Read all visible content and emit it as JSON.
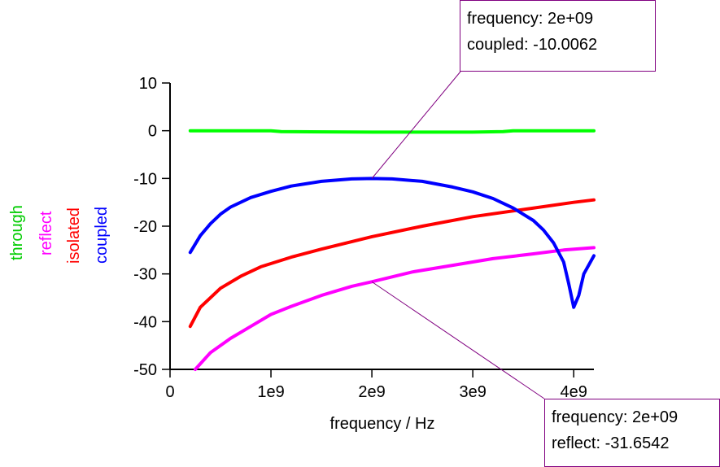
{
  "chart_data": {
    "type": "line",
    "xlabel": "frequency / Hz",
    "xlim": [
      0,
      4200000000
    ],
    "ylim": [
      -50,
      10
    ],
    "x_ticks": [
      0,
      1000000000,
      2000000000,
      3000000000,
      4000000000
    ],
    "x_tick_labels": [
      "0",
      "1e9",
      "2e9",
      "3e9",
      "4e9"
    ],
    "y_ticks": [
      10,
      0,
      -10,
      -20,
      -30,
      -40,
      -50
    ],
    "y_tick_labels": [
      "10",
      "0",
      "-10",
      "-20",
      "-30",
      "-40",
      "-50"
    ],
    "grid": false,
    "legend_position": "left, vertical",
    "series": [
      {
        "name": "through",
        "color": "#00ff00",
        "x": [
          200000000,
          500000000,
          1000000000,
          1100000000,
          2000000000,
          3000000000,
          3300000000,
          3400000000,
          4200000000
        ],
        "y": [
          0,
          0,
          0,
          -0.2,
          -0.3,
          -0.3,
          -0.2,
          0,
          0
        ]
      },
      {
        "name": "reflect",
        "color": "#ff00ff",
        "x": [
          250000000,
          400000000,
          600000000,
          800000000,
          1000000000,
          1200000000,
          1500000000,
          1800000000,
          2000000000,
          2400000000,
          2800000000,
          3200000000,
          3600000000,
          3900000000,
          4200000000
        ],
        "y": [
          -50,
          -46.5,
          -43.5,
          -41,
          -38.5,
          -36.8,
          -34.5,
          -32.6,
          -31.65,
          -29.6,
          -28.2,
          -26.8,
          -25.8,
          -25,
          -24.5
        ]
      },
      {
        "name": "isolated",
        "color": "#ff0000",
        "x": [
          200000000,
          300000000,
          500000000,
          700000000,
          900000000,
          1200000000,
          1500000000,
          2000000000,
          2500000000,
          3000000000,
          3500000000,
          4000000000,
          4200000000
        ],
        "y": [
          -41,
          -37,
          -33,
          -30.5,
          -28.5,
          -26.5,
          -24.8,
          -22.2,
          -20,
          -18,
          -16.5,
          -15,
          -14.5
        ]
      },
      {
        "name": "coupled",
        "color": "#0000ff",
        "x": [
          200000000,
          300000000,
          400000000,
          500000000,
          600000000,
          800000000,
          1000000000,
          1200000000,
          1500000000,
          1800000000,
          2000000000,
          2200000000,
          2500000000,
          2800000000,
          3000000000,
          3200000000,
          3400000000,
          3600000000,
          3700000000,
          3800000000,
          3900000000,
          3950000000,
          4000000000,
          4050000000,
          4100000000,
          4200000000
        ],
        "y": [
          -25.5,
          -22,
          -19.5,
          -17.5,
          -16,
          -14,
          -12.7,
          -11.6,
          -10.6,
          -10.1,
          -10.0062,
          -10.1,
          -10.6,
          -11.8,
          -12.8,
          -14.2,
          -16.2,
          -18.8,
          -20.8,
          -23.5,
          -27.5,
          -32,
          -37,
          -34.5,
          -30,
          -26.2
        ]
      }
    ]
  },
  "markers": [
    {
      "line1": "frequency: 2e+09",
      "line2": "coupled: -10.0062",
      "x": 2000000000,
      "y": -10.0062,
      "series": "coupled"
    },
    {
      "line1": "frequency: 2e+09",
      "line2": "reflect: -31.6542",
      "x": 2000000000,
      "y": -31.6542,
      "series": "reflect"
    }
  ],
  "colors": {
    "marker_border": "#800080",
    "axis": "#000000"
  }
}
